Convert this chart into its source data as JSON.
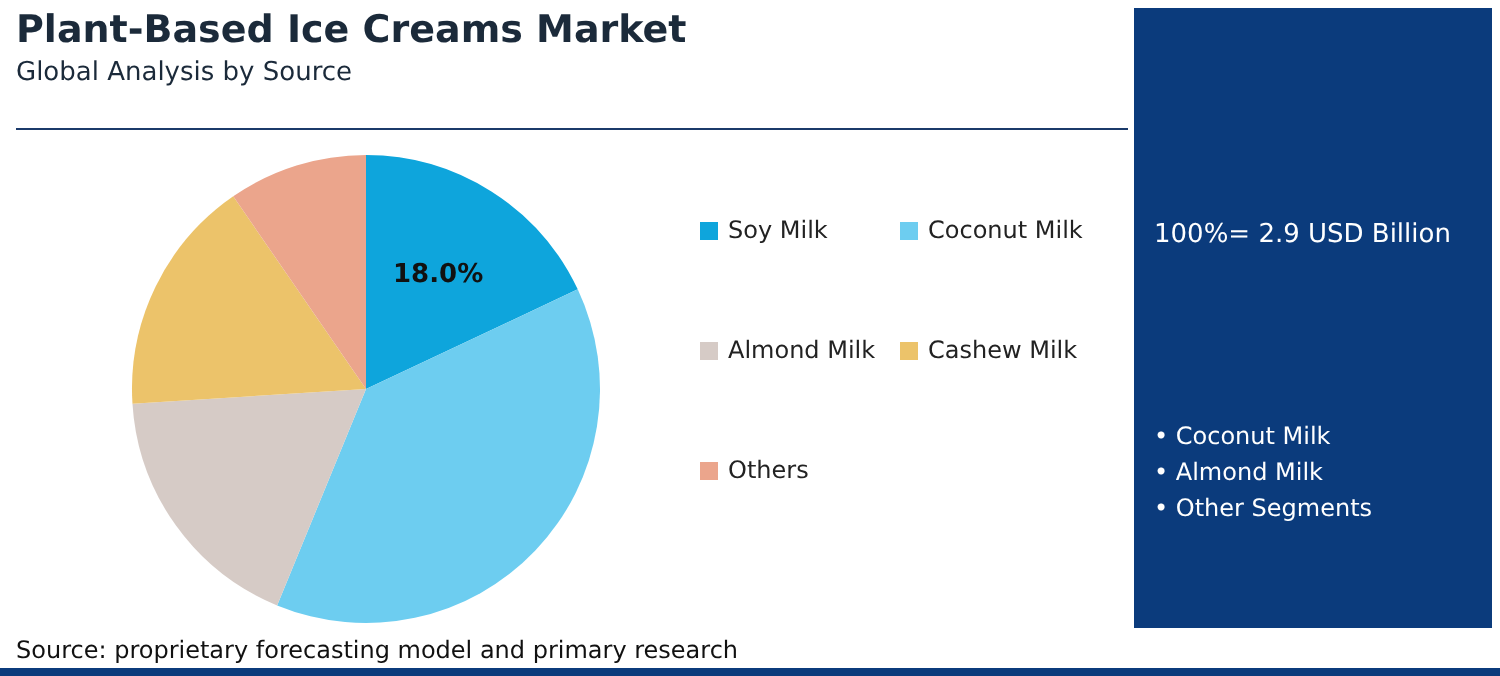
{
  "chart_data": {
    "type": "pie",
    "title": "Plant-Based Ice Creams Market",
    "subtitle": "Global Analysis by Source",
    "categories": [
      "Soy Milk",
      "Coconut Milk",
      "Almond Milk",
      "Cashew Milk",
      "Others"
    ],
    "values": [
      18.0,
      38.2,
      17.8,
      16.4,
      9.6
    ],
    "colors": [
      "#0ea5dc",
      "#6dcdf0",
      "#d6cbc6",
      "#ecc36a",
      "#eba58c"
    ],
    "value_labels": [
      "18.0%",
      null,
      null,
      null,
      null
    ],
    "legend": "right",
    "annotations": [
      "100%= 2.9 USD Billion",
      "• Coconut Milk",
      "• Almond Milk",
      "• Other Segments",
      "Source: proprietary forecasting model and primary research"
    ]
  }
}
